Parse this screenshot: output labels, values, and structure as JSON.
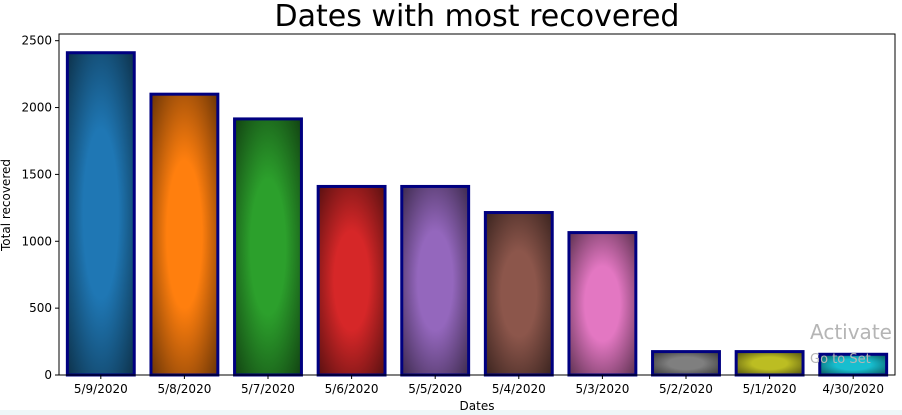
{
  "chart_data": {
    "type": "bar",
    "title": "Dates with most recovered",
    "xlabel": "Dates",
    "ylabel": "Total recovered",
    "categories": [
      "5/9/2020",
      "5/8/2020",
      "5/7/2020",
      "5/6/2020",
      "5/5/2020",
      "5/4/2020",
      "5/3/2020",
      "5/2/2020",
      "5/1/2020",
      "4/30/2020"
    ],
    "values": [
      2410,
      2100,
      1915,
      1410,
      1410,
      1215,
      1065,
      175,
      175,
      155
    ],
    "ylim": [
      0,
      2550
    ],
    "yticks": [
      0,
      500,
      1000,
      1500,
      2000,
      2500
    ],
    "colors": [
      "#1f77b4",
      "#ff7f0e",
      "#2ca02c",
      "#d62728",
      "#9467bd",
      "#8c564b",
      "#e377c2",
      "#7f7f7f",
      "#bcbd22",
      "#17becf"
    ],
    "edge_color": "#000080",
    "grid": false,
    "legend": "none"
  },
  "watermark": {
    "line1": "Activate",
    "line2": "Go to Set"
  }
}
